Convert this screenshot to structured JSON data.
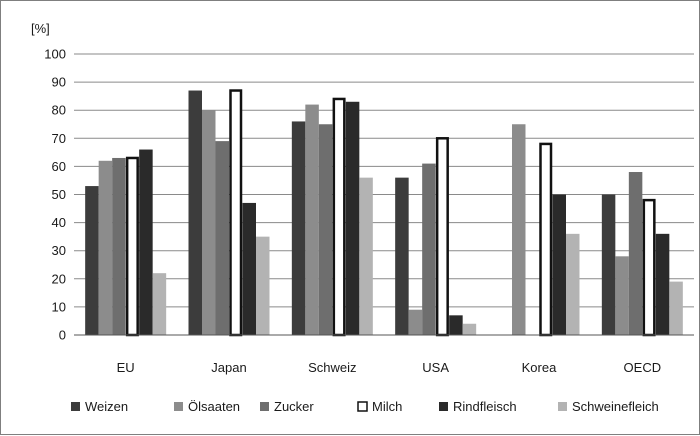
{
  "chart_data": {
    "type": "bar",
    "unit_label": "[%]",
    "categories": [
      "EU",
      "Japan",
      "Schweiz",
      "USA",
      "Korea",
      "OECD"
    ],
    "ylim": [
      0,
      100
    ],
    "yticks": [
      0,
      10,
      20,
      30,
      40,
      50,
      60,
      70,
      80,
      90,
      100
    ],
    "grid": true,
    "legend_position": "bottom",
    "series": [
      {
        "name": "Weizen",
        "color": "#3c3c3c",
        "outline": false,
        "values": [
          53,
          87,
          76,
          56,
          null,
          50
        ]
      },
      {
        "name": "Ölsaaten",
        "color": "#8c8c8c",
        "outline": false,
        "values": [
          62,
          80,
          82,
          9,
          75,
          28
        ]
      },
      {
        "name": "Zucker",
        "color": "#6e6e6e",
        "outline": false,
        "values": [
          63,
          69,
          75,
          61,
          null,
          58
        ]
      },
      {
        "name": "Milch",
        "color": "#ffffff",
        "outline": true,
        "values": [
          63,
          87,
          84,
          70,
          68,
          48
        ]
      },
      {
        "name": "Rindfleisch",
        "color": "#2a2a2a",
        "outline": false,
        "values": [
          66,
          47,
          83,
          7,
          50,
          36
        ]
      },
      {
        "name": "Schweinefleich",
        "color": "#b3b3b3",
        "outline": false,
        "values": [
          22,
          35,
          56,
          4,
          36,
          19
        ]
      }
    ]
  }
}
